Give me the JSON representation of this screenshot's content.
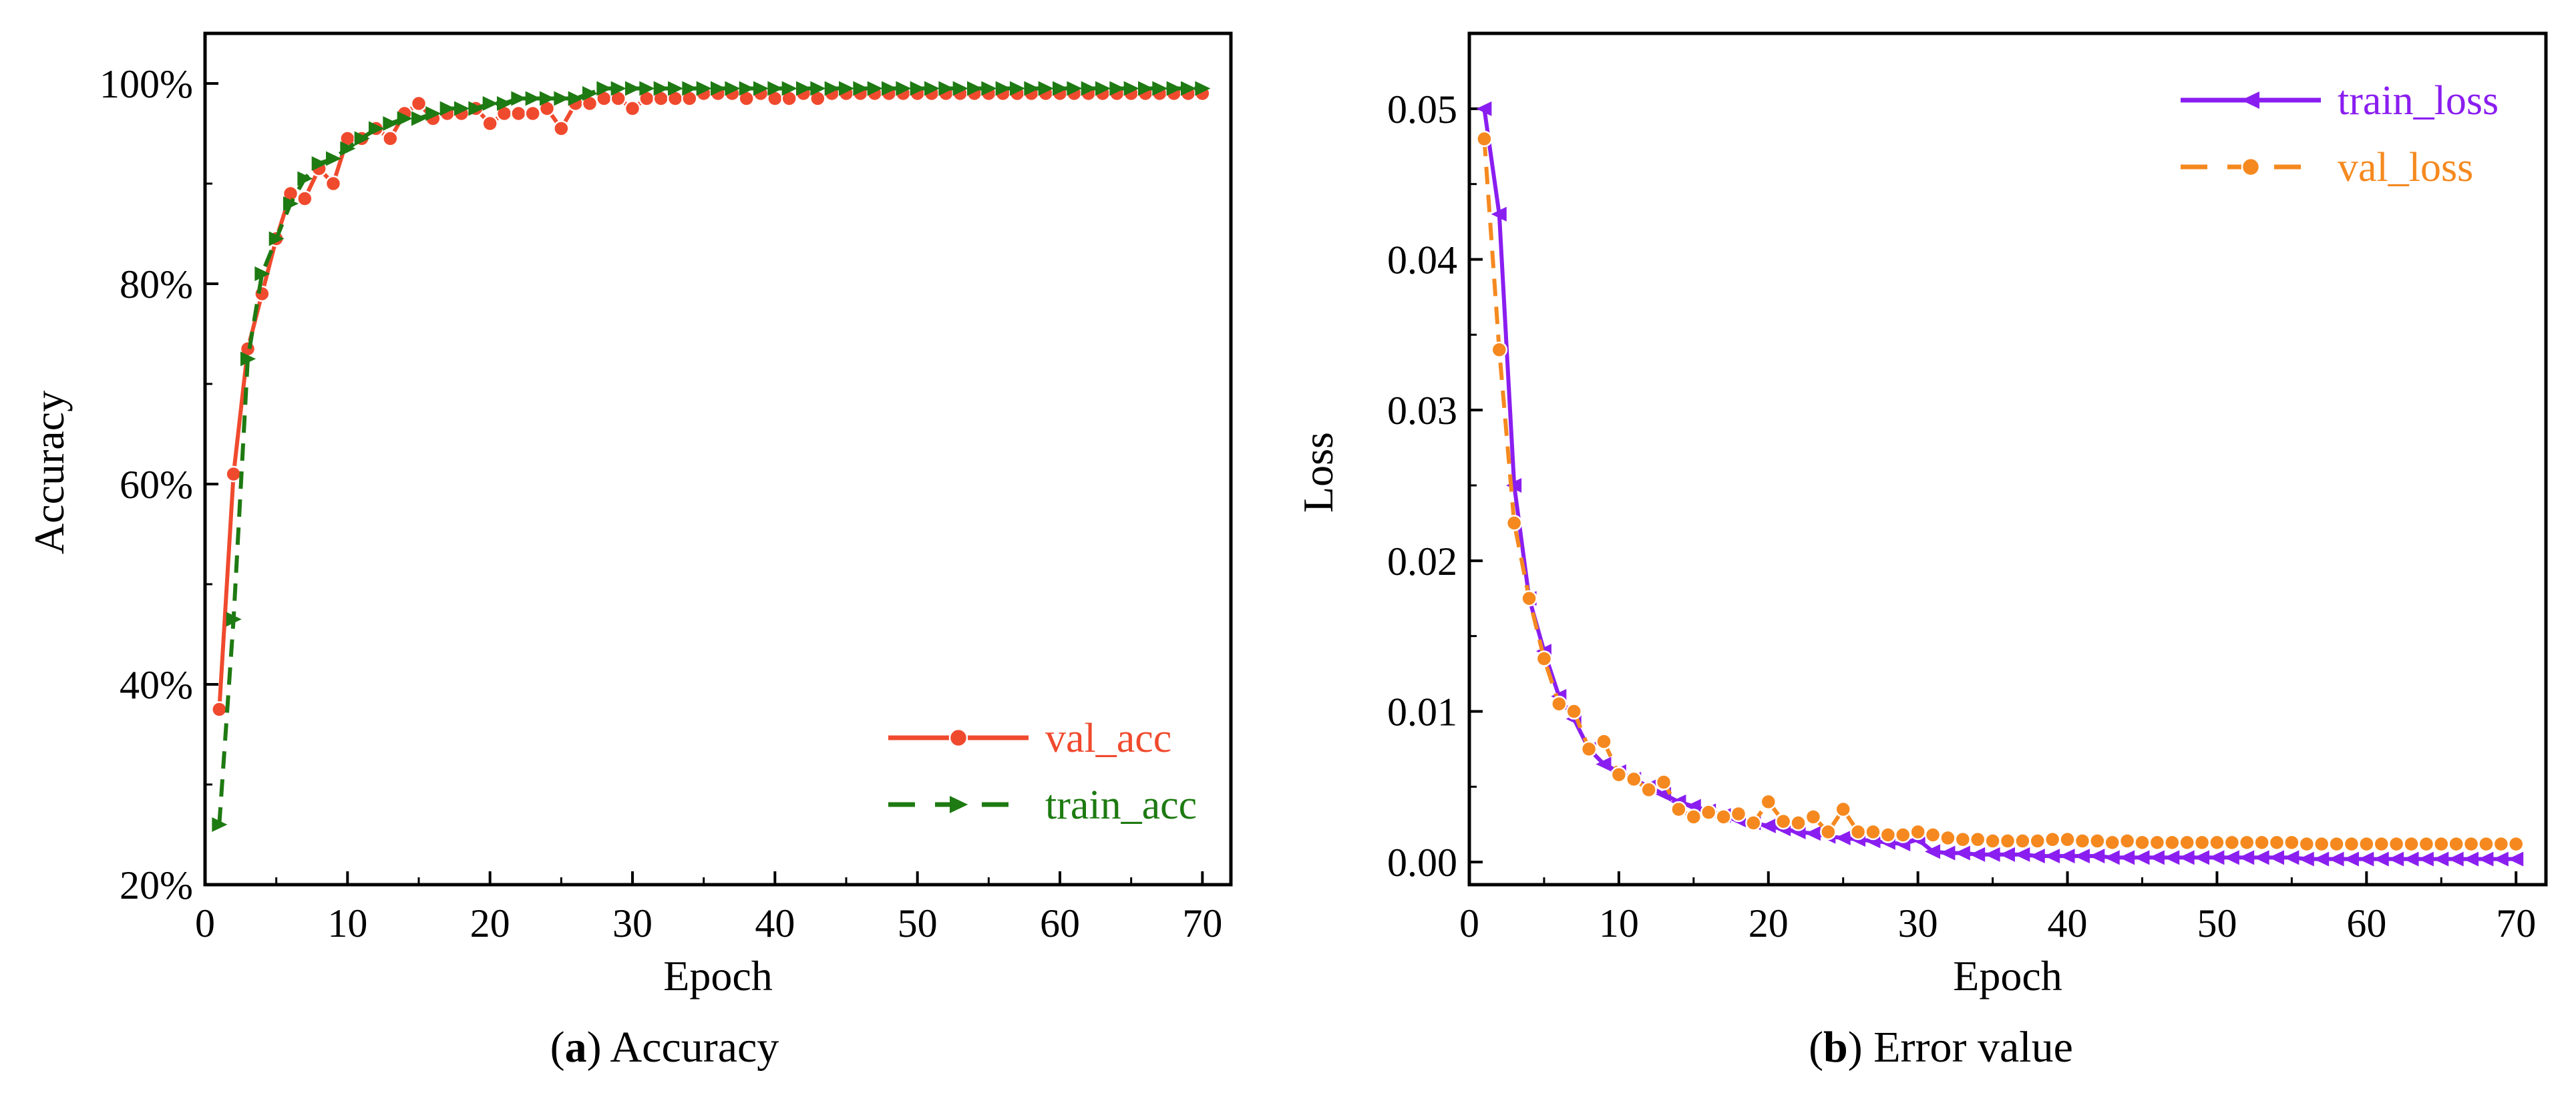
{
  "chart_data": [
    {
      "type": "line",
      "panel": "a",
      "caption_letter": "a",
      "caption_text": "Accuracy",
      "xlabel": "Epoch",
      "ylabel": "Accuracy",
      "xlim": [
        0,
        72
      ],
      "ylim": [
        20,
        105
      ],
      "xticks": [
        0,
        10,
        20,
        30,
        40,
        50,
        60,
        70
      ],
      "yticks": [
        20,
        40,
        60,
        80,
        100
      ],
      "ytick_labels": [
        "20%",
        "40%",
        "60%",
        "80%",
        "100%"
      ],
      "legend_position": "bottom-right",
      "series": [
        {
          "name": "val_acc",
          "color": "#f04a2e",
          "line": "solid",
          "marker": "circle",
          "x": [
            1,
            2,
            3,
            4,
            5,
            6,
            7,
            8,
            9,
            10,
            11,
            12,
            13,
            14,
            15,
            16,
            17,
            18,
            19,
            20,
            21,
            22,
            23,
            24,
            25,
            26,
            27,
            28,
            29,
            30,
            31,
            32,
            33,
            34,
            35,
            36,
            37,
            38,
            39,
            40,
            41,
            42,
            43,
            44,
            45,
            46,
            47,
            48,
            49,
            50,
            51,
            52,
            53,
            54,
            55,
            56,
            57,
            58,
            59,
            60,
            61,
            62,
            63,
            64,
            65,
            66,
            67,
            68,
            69,
            70
          ],
          "y": [
            37.5,
            61,
            73.5,
            79,
            84.5,
            89,
            88.5,
            91.5,
            90,
            94.5,
            94.5,
            95.5,
            94.5,
            97,
            98,
            96.5,
            97,
            97,
            97.5,
            96,
            97,
            97,
            97,
            97.5,
            95.5,
            98,
            98,
            98.5,
            98.5,
            97.5,
            98.5,
            98.5,
            98.5,
            98.5,
            99,
            99,
            99,
            98.5,
            99,
            98.5,
            98.5,
            99,
            98.5,
            99,
            99,
            99,
            99,
            99,
            99,
            99,
            99,
            99,
            99,
            99,
            99,
            99,
            99,
            99,
            99,
            99,
            99,
            99,
            99,
            99,
            99,
            99,
            99,
            99,
            99,
            99
          ]
        },
        {
          "name": "train_acc",
          "color": "#1e7a12",
          "line": "dashed",
          "marker": "triangle-right",
          "x": [
            1,
            2,
            3,
            4,
            5,
            6,
            7,
            8,
            9,
            10,
            11,
            12,
            13,
            14,
            15,
            16,
            17,
            18,
            19,
            20,
            21,
            22,
            23,
            24,
            25,
            26,
            27,
            28,
            29,
            30,
            31,
            32,
            33,
            34,
            35,
            36,
            37,
            38,
            39,
            40,
            41,
            42,
            43,
            44,
            45,
            46,
            47,
            48,
            49,
            50,
            51,
            52,
            53,
            54,
            55,
            56,
            57,
            58,
            59,
            60,
            61,
            62,
            63,
            64,
            65,
            66,
            67,
            68,
            69,
            70
          ],
          "y": [
            26,
            46.5,
            72.5,
            81,
            84.5,
            88,
            90.5,
            92,
            92.5,
            93.5,
            94.5,
            95.5,
            96,
            96.5,
            96.5,
            97,
            97.5,
            97.5,
            97.5,
            98,
            98,
            98.5,
            98.5,
            98.5,
            98.5,
            98.5,
            99,
            99.5,
            99.5,
            99.5,
            99.5,
            99.5,
            99.5,
            99.5,
            99.5,
            99.5,
            99.5,
            99.5,
            99.5,
            99.5,
            99.5,
            99.5,
            99.5,
            99.5,
            99.5,
            99.5,
            99.5,
            99.5,
            99.5,
            99.5,
            99.5,
            99.5,
            99.5,
            99.5,
            99.5,
            99.5,
            99.5,
            99.5,
            99.5,
            99.5,
            99.5,
            99.5,
            99.5,
            99.5,
            99.5,
            99.5,
            99.5,
            99.5,
            99.5,
            99.5
          ]
        }
      ]
    },
    {
      "type": "line",
      "panel": "b",
      "caption_letter": "b",
      "caption_text": "Error value",
      "xlabel": "Epoch",
      "ylabel": "Loss",
      "xlim": [
        0,
        72
      ],
      "ylim": [
        -0.0015,
        0.055
      ],
      "xticks": [
        0,
        10,
        20,
        30,
        40,
        50,
        60,
        70
      ],
      "yticks": [
        0,
        0.01,
        0.02,
        0.03,
        0.04,
        0.05
      ],
      "ytick_labels": [
        "0.00",
        "0.01",
        "0.02",
        "0.03",
        "0.04",
        "0.05"
      ],
      "legend_position": "top-right",
      "series": [
        {
          "name": "train_loss",
          "color": "#8a1ef0",
          "line": "solid",
          "marker": "triangle-left",
          "x": [
            1,
            2,
            3,
            4,
            5,
            6,
            7,
            8,
            9,
            10,
            11,
            12,
            13,
            14,
            15,
            16,
            17,
            18,
            19,
            20,
            21,
            22,
            23,
            24,
            25,
            26,
            27,
            28,
            29,
            30,
            31,
            32,
            33,
            34,
            35,
            36,
            37,
            38,
            39,
            40,
            41,
            42,
            43,
            44,
            45,
            46,
            47,
            48,
            49,
            50,
            51,
            52,
            53,
            54,
            55,
            56,
            57,
            58,
            59,
            60,
            61,
            62,
            63,
            64,
            65,
            66,
            67,
            68,
            69,
            70
          ],
          "y": [
            0.05,
            0.043,
            0.025,
            0.0175,
            0.014,
            0.011,
            0.0095,
            0.0075,
            0.0065,
            0.006,
            0.0055,
            0.005,
            0.0045,
            0.004,
            0.0037,
            0.0034,
            0.0031,
            0.0028,
            0.0026,
            0.0024,
            0.0022,
            0.002,
            0.0019,
            0.0017,
            0.0016,
            0.0015,
            0.0014,
            0.0013,
            0.0012,
            0.0015,
            0.0007,
            0.0006,
            0.0006,
            0.0005,
            0.0005,
            0.0005,
            0.0005,
            0.0004,
            0.0004,
            0.0004,
            0.0004,
            0.0004,
            0.0003,
            0.0003,
            0.0003,
            0.0003,
            0.0003,
            0.0003,
            0.0003,
            0.0003,
            0.0003,
            0.0003,
            0.0003,
            0.0003,
            0.0003,
            0.0002,
            0.0002,
            0.0002,
            0.0002,
            0.0002,
            0.0002,
            0.0002,
            0.0002,
            0.0002,
            0.0002,
            0.0002,
            0.0002,
            0.0002,
            0.0002,
            0.0002
          ]
        },
        {
          "name": "val_loss",
          "color": "#f5891f",
          "line": "dashed",
          "marker": "circle",
          "x": [
            1,
            2,
            3,
            4,
            5,
            6,
            7,
            8,
            9,
            10,
            11,
            12,
            13,
            14,
            15,
            16,
            17,
            18,
            19,
            20,
            21,
            22,
            23,
            24,
            25,
            26,
            27,
            28,
            29,
            30,
            31,
            32,
            33,
            34,
            35,
            36,
            37,
            38,
            39,
            40,
            41,
            42,
            43,
            44,
            45,
            46,
            47,
            48,
            49,
            50,
            51,
            52,
            53,
            54,
            55,
            56,
            57,
            58,
            59,
            60,
            61,
            62,
            63,
            64,
            65,
            66,
            67,
            68,
            69,
            70
          ],
          "y": [
            0.048,
            0.034,
            0.0225,
            0.0175,
            0.0135,
            0.0105,
            0.01,
            0.0075,
            0.008,
            0.0058,
            0.0055,
            0.0048,
            0.0053,
            0.0035,
            0.003,
            0.0033,
            0.003,
            0.0032,
            0.0026,
            0.004,
            0.0027,
            0.0026,
            0.003,
            0.002,
            0.0035,
            0.002,
            0.002,
            0.0018,
            0.0018,
            0.002,
            0.0018,
            0.0016,
            0.0015,
            0.0015,
            0.0014,
            0.0014,
            0.0014,
            0.0014,
            0.0015,
            0.0015,
            0.0014,
            0.0014,
            0.0013,
            0.0014,
            0.0013,
            0.0013,
            0.0013,
            0.0013,
            0.0013,
            0.0013,
            0.0013,
            0.0013,
            0.0013,
            0.0013,
            0.0013,
            0.0012,
            0.0012,
            0.0012,
            0.0012,
            0.0012,
            0.0012,
            0.0012,
            0.0012,
            0.0012,
            0.0012,
            0.0012,
            0.0012,
            0.0012,
            0.0012,
            0.0012
          ]
        }
      ]
    }
  ]
}
